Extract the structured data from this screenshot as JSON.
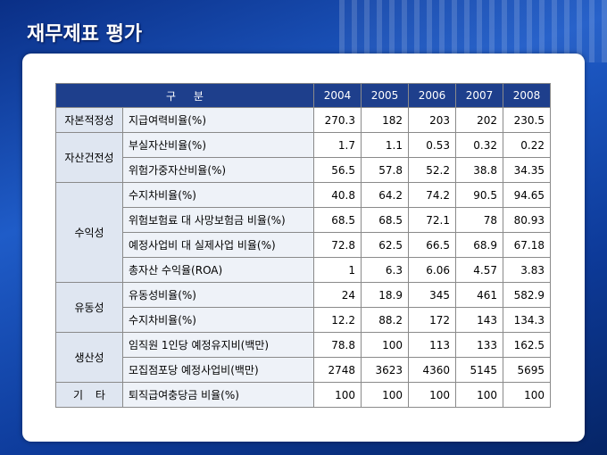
{
  "header": {
    "title": "재무제표 평가"
  },
  "table": {
    "columns": [
      "구 분",
      2004,
      2005,
      2006,
      2007,
      2008
    ],
    "groups": [
      {
        "label": "자본적정성",
        "rows": [
          {
            "item": "지급여력비율(%)",
            "values": [
              270.3,
              182,
              203,
              202,
              230.5
            ]
          }
        ]
      },
      {
        "label": "자산건전성",
        "rows": [
          {
            "item": "부실자산비율(%)",
            "values": [
              1.7,
              1.1,
              0.53,
              0.32,
              0.22
            ]
          },
          {
            "item": "위험가중자산비율(%)",
            "values": [
              56.5,
              57.8,
              52.2,
              38.8,
              34.35
            ]
          }
        ]
      },
      {
        "label": "수익성",
        "rows": [
          {
            "item": "수지차비율(%)",
            "values": [
              40.8,
              64.2,
              74.2,
              90.5,
              94.65
            ]
          },
          {
            "item": "위험보험료 대 사망보험금 비율(%)",
            "values": [
              68.5,
              68.5,
              72.1,
              78,
              80.93
            ]
          },
          {
            "item": "예정사업비 대 실제사업 비율(%)",
            "values": [
              72.8,
              62.5,
              66.5,
              68.9,
              67.18
            ]
          },
          {
            "item": "총자산 수익율(ROA)",
            "values": [
              1,
              6.3,
              6.06,
              4.57,
              3.83
            ]
          }
        ]
      },
      {
        "label": "유동성",
        "rows": [
          {
            "item": "유동성비율(%)",
            "values": [
              24,
              18.9,
              345,
              461,
              582.9
            ]
          },
          {
            "item": "수지차비율(%)",
            "values": [
              12.2,
              88.2,
              172,
              143,
              134.3
            ]
          }
        ]
      },
      {
        "label": "생산성",
        "rows": [
          {
            "item": "임직원 1인당 예정유지비(백만)",
            "values": [
              78.8,
              100,
              113,
              133,
              162.5
            ]
          },
          {
            "item": "모집점포당 예정사업비(백만)",
            "values": [
              2748,
              3623,
              4360,
              5145,
              5695
            ]
          }
        ]
      },
      {
        "label": "기 타",
        "rows": [
          {
            "item": "퇴직급여충당금 비율(%)",
            "values": [
              100,
              100,
              100,
              100,
              100
            ]
          }
        ]
      }
    ]
  }
}
